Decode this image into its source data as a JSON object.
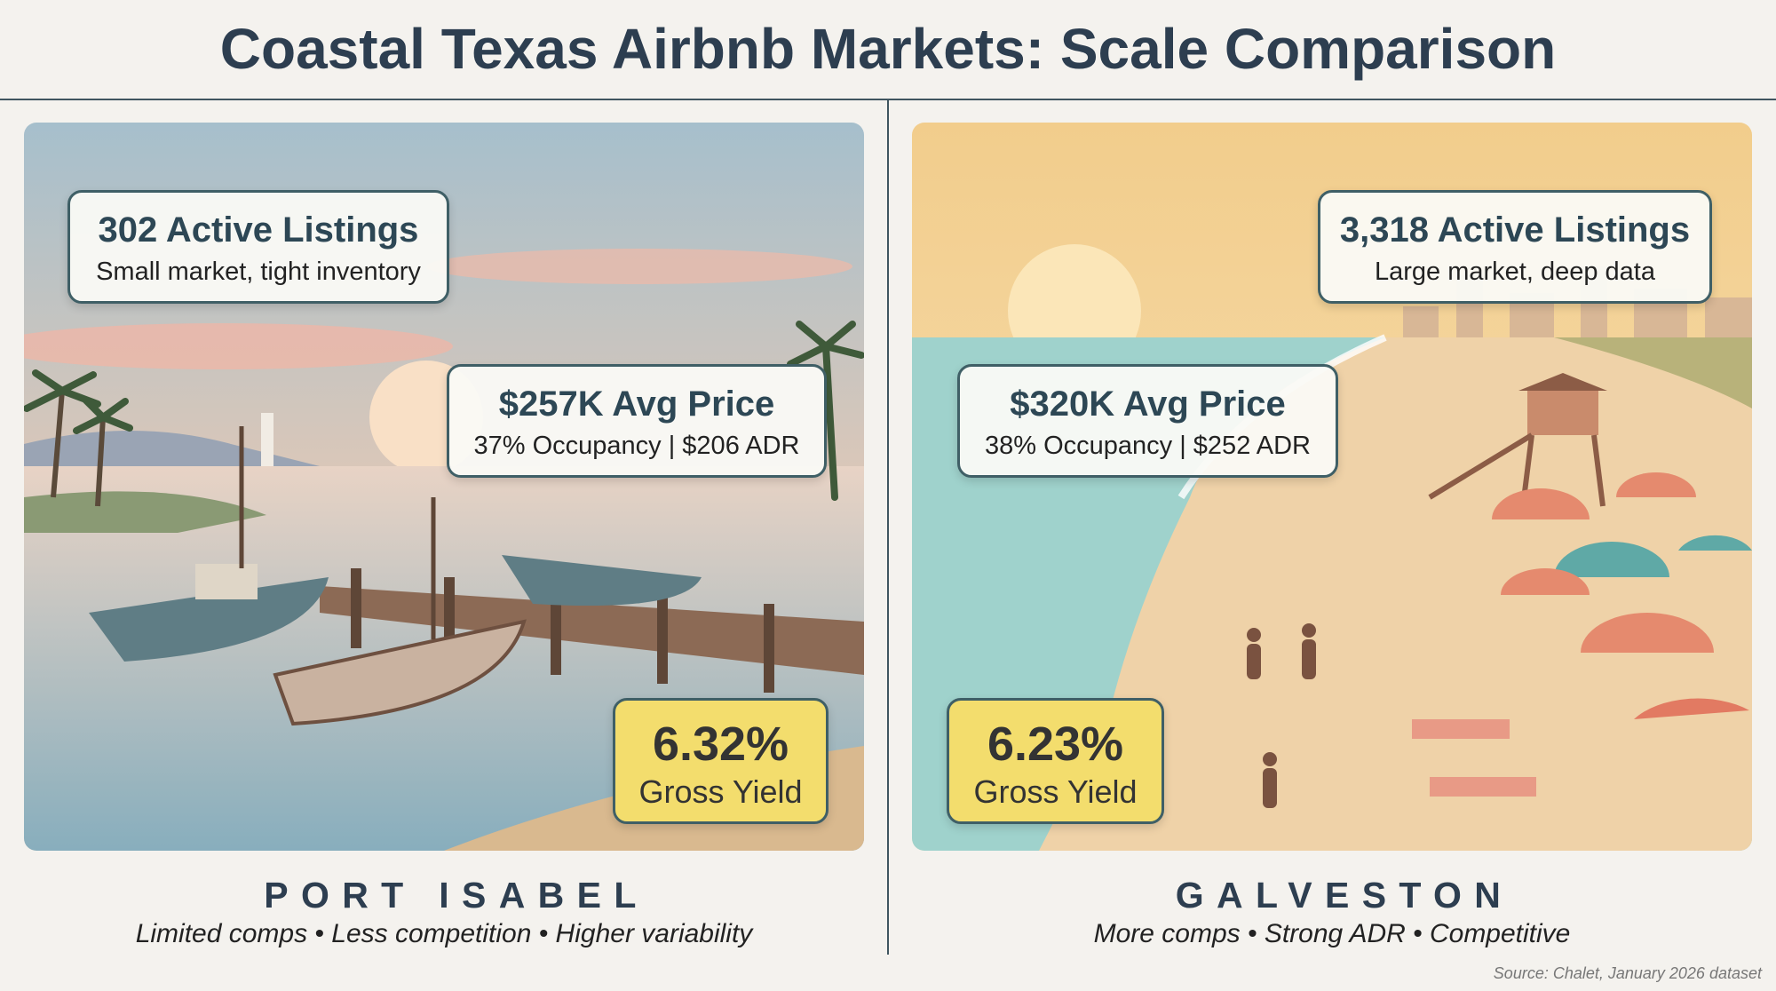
{
  "title": "Coastal Texas Airbnb Markets: Scale Comparison",
  "markets": [
    {
      "name": "PORT ISABEL",
      "listings": "302 Active Listings",
      "listings_note": "Small market, tight inventory",
      "price": "$257K Avg Price",
      "price_note": "37% Occupancy | $206 ADR",
      "yield": "6.32%",
      "yield_label": "Gross Yield",
      "tagline": "Limited comps • Less competition • Higher variability"
    },
    {
      "name": "GALVESTON",
      "listings": "3,318 Active Listings",
      "listings_note": "Large market, deep data",
      "price": "$320K Avg Price",
      "price_note": "38% Occupancy | $252 ADR",
      "yield": "6.23%",
      "yield_label": "Gross Yield",
      "tagline": "More comps • Strong ADR • Competitive"
    }
  ],
  "source": "Source: Chalet, January 2026 dataset"
}
